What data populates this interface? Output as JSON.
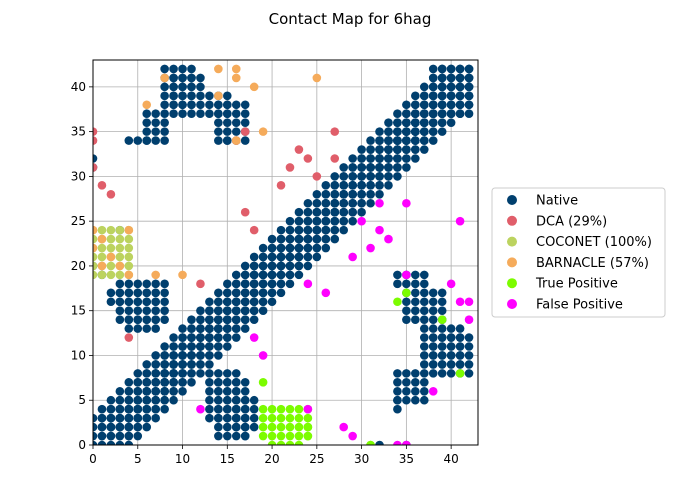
{
  "chart_data": {
    "type": "scatter",
    "title": "Contact Map for 6hag",
    "xlabel": "",
    "ylabel": "",
    "xlim": [
      0,
      43
    ],
    "ylim": [
      0,
      43
    ],
    "xticks": [
      0,
      5,
      10,
      15,
      20,
      25,
      30,
      35,
      40
    ],
    "yticks": [
      0,
      5,
      10,
      15,
      20,
      25,
      30,
      35,
      40
    ],
    "grid": true,
    "legend_position": "right",
    "series": [
      {
        "name": "Native",
        "color": "#003f6e",
        "blocks": [
          [
            0,
            4,
            0,
            3
          ],
          [
            1,
            5,
            1,
            4
          ],
          [
            2,
            6,
            2,
            5
          ],
          [
            3,
            7,
            3,
            6
          ],
          [
            4,
            8,
            4,
            7
          ],
          [
            5,
            9,
            5,
            8
          ],
          [
            6,
            10,
            6,
            9
          ],
          [
            7,
            11,
            7,
            10
          ],
          [
            8,
            12,
            8,
            11
          ],
          [
            9,
            13,
            9,
            12
          ],
          [
            10,
            14,
            10,
            13
          ],
          [
            11,
            15,
            11,
            14
          ],
          [
            12,
            16,
            12,
            15
          ],
          [
            13,
            17,
            13,
            16
          ],
          [
            14,
            18,
            14,
            17
          ],
          [
            15,
            19,
            15,
            18
          ],
          [
            16,
            20,
            16,
            19
          ],
          [
            17,
            21,
            17,
            20
          ],
          [
            18,
            22,
            18,
            21
          ],
          [
            19,
            23,
            19,
            22
          ],
          [
            20,
            24,
            20,
            23
          ],
          [
            21,
            25,
            21,
            24
          ],
          [
            22,
            26,
            22,
            25
          ],
          [
            23,
            27,
            23,
            26
          ],
          [
            24,
            28,
            24,
            27
          ],
          [
            25,
            29,
            25,
            28
          ],
          [
            26,
            30,
            26,
            29
          ],
          [
            27,
            31,
            27,
            30
          ],
          [
            28,
            32,
            28,
            31
          ],
          [
            29,
            33,
            29,
            32
          ],
          [
            30,
            34,
            30,
            33
          ],
          [
            31,
            35,
            31,
            34
          ],
          [
            32,
            36,
            32,
            35
          ],
          [
            33,
            37,
            33,
            36
          ],
          [
            34,
            38,
            34,
            37
          ],
          [
            35,
            39,
            35,
            38
          ],
          [
            36,
            40,
            36,
            39
          ],
          [
            37,
            41,
            37,
            40
          ],
          [
            38,
            42,
            38,
            41
          ],
          [
            39,
            42,
            39,
            42
          ],
          [
            3,
            8,
            14,
            18
          ],
          [
            2,
            7,
            16,
            17
          ],
          [
            4,
            7,
            13,
            14
          ],
          [
            13,
            16,
            3,
            8
          ],
          [
            14,
            17,
            1,
            7
          ],
          [
            16,
            18,
            2,
            5
          ],
          [
            8,
            11,
            38,
            42
          ],
          [
            9,
            12,
            37,
            41
          ],
          [
            6,
            8,
            34,
            37
          ],
          [
            14,
            17,
            34,
            38
          ],
          [
            13,
            15,
            37,
            39
          ],
          [
            38,
            42,
            8,
            12
          ],
          [
            37,
            41,
            9,
            13
          ],
          [
            35,
            39,
            14,
            17
          ],
          [
            34,
            37,
            18,
            19
          ],
          [
            38,
            42,
            37,
            42
          ],
          [
            34,
            37,
            5,
            8
          ]
        ],
        "points": [
          [
            0,
            32
          ],
          [
            0,
            31
          ],
          [
            0,
            20
          ],
          [
            1,
            19
          ],
          [
            3,
            24
          ],
          [
            4,
            34
          ],
          [
            5,
            34
          ],
          [
            6,
            34
          ],
          [
            12,
            11
          ],
          [
            15,
            34
          ],
          [
            17,
            1
          ],
          [
            25,
            24
          ],
          [
            32,
            0
          ],
          [
            34,
            4
          ],
          [
            34,
            5
          ],
          [
            35,
            0
          ]
        ]
      },
      {
        "name": "DCA (29%)",
        "color": "#e05e6a",
        "points": [
          [
            0,
            35
          ],
          [
            0,
            34
          ],
          [
            0,
            31
          ],
          [
            1,
            29
          ],
          [
            2,
            28
          ],
          [
            4,
            12
          ],
          [
            12,
            18
          ],
          [
            16,
            34
          ],
          [
            17,
            35
          ],
          [
            17,
            26
          ],
          [
            18,
            24
          ],
          [
            21,
            29
          ],
          [
            22,
            31
          ],
          [
            23,
            33
          ],
          [
            24,
            32
          ],
          [
            25,
            30
          ],
          [
            27,
            35
          ],
          [
            27,
            32
          ]
        ]
      },
      {
        "name": "COCONET (100%)",
        "color": "#bcd35f",
        "blocks": [
          [
            0,
            4,
            19,
            24
          ]
        ],
        "points": [
          [
            31,
            0
          ]
        ]
      },
      {
        "name": "BARNACLE (57%)",
        "color": "#f5ab5b",
        "points": [
          [
            0,
            22
          ],
          [
            0,
            24
          ],
          [
            1,
            20
          ],
          [
            1,
            23
          ],
          [
            2,
            21
          ],
          [
            3,
            20
          ],
          [
            4,
            24
          ],
          [
            4,
            19
          ],
          [
            7,
            19
          ],
          [
            8,
            41
          ],
          [
            6,
            38
          ],
          [
            10,
            19
          ],
          [
            14,
            42
          ],
          [
            14,
            39
          ],
          [
            16,
            42
          ],
          [
            16,
            41
          ],
          [
            18,
            40
          ],
          [
            19,
            35
          ],
          [
            16,
            34
          ],
          [
            25,
            41
          ]
        ]
      },
      {
        "name": "True Positive",
        "color": "#7cfc00",
        "blocks": [
          [
            19,
            24,
            1,
            4
          ]
        ],
        "points": [
          [
            19,
            7
          ],
          [
            20,
            0
          ],
          [
            21,
            0
          ],
          [
            22,
            0
          ],
          [
            23,
            0
          ],
          [
            24,
            1
          ],
          [
            24,
            2
          ],
          [
            34,
            16
          ],
          [
            35,
            17
          ],
          [
            39,
            14
          ],
          [
            41,
            8
          ],
          [
            31,
            0
          ]
        ]
      },
      {
        "name": "False Positive",
        "color": "#ff00ff",
        "points": [
          [
            12,
            4
          ],
          [
            18,
            12
          ],
          [
            19,
            10
          ],
          [
            24,
            4
          ],
          [
            24,
            18
          ],
          [
            26,
            17
          ],
          [
            28,
            2
          ],
          [
            29,
            1
          ],
          [
            29,
            21
          ],
          [
            30,
            25
          ],
          [
            31,
            22
          ],
          [
            32,
            24
          ],
          [
            32,
            27
          ],
          [
            33,
            23
          ],
          [
            35,
            27
          ],
          [
            35,
            19
          ],
          [
            34,
            0
          ],
          [
            35,
            0
          ],
          [
            38,
            6
          ],
          [
            40,
            18
          ],
          [
            41,
            16
          ],
          [
            42,
            16
          ],
          [
            42,
            14
          ],
          [
            41,
            25
          ]
        ]
      }
    ]
  }
}
